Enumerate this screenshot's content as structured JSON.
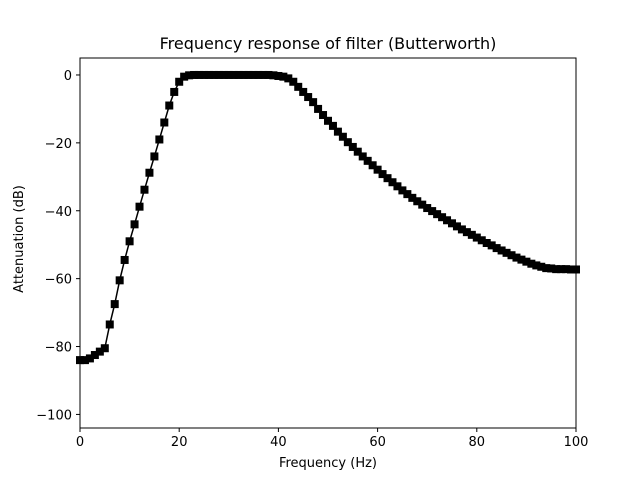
{
  "chart_data": {
    "type": "line",
    "title": "Frequency response of filter (Butterworth)",
    "xlabel": "Frequency (Hz)",
    "ylabel": "Attenuation (dB)",
    "xlim": [
      0,
      100
    ],
    "ylim": [
      -104,
      5
    ],
    "xticks": [
      0,
      20,
      40,
      60,
      80,
      100
    ],
    "yticks": [
      0,
      -20,
      -40,
      -60,
      -80,
      -100
    ],
    "xtick_labels": [
      "0",
      "20",
      "40",
      "60",
      "80",
      "100"
    ],
    "ytick_labels": [
      "0",
      "−20",
      "−40",
      "−60",
      "−80",
      "−100"
    ],
    "grid": false,
    "marker": "square",
    "series_color": "#000000",
    "x": [
      0,
      1,
      2,
      3,
      4,
      5,
      6,
      7,
      8,
      9,
      10,
      11,
      12,
      13,
      14,
      15,
      16,
      17,
      18,
      19,
      20,
      21,
      22,
      23,
      24,
      25,
      26,
      27,
      28,
      29,
      30,
      31,
      32,
      33,
      34,
      35,
      36,
      37,
      38,
      39,
      40,
      41,
      42,
      43,
      44,
      45,
      46,
      47,
      48,
      49,
      50,
      51,
      52,
      53,
      54,
      55,
      56,
      57,
      58,
      59,
      60,
      61,
      62,
      63,
      64,
      65,
      66,
      67,
      68,
      69,
      70,
      71,
      72,
      73,
      74,
      75,
      76,
      77,
      78,
      79,
      80,
      81,
      82,
      83,
      84,
      85,
      86,
      87,
      88,
      89,
      90,
      91,
      92,
      93,
      94,
      95,
      96,
      97,
      98,
      99,
      100
    ],
    "y": [
      -84,
      -84,
      -83.5,
      -82.5,
      -81.5,
      -80.5,
      -73.5,
      -67.5,
      -60.5,
      -54.5,
      -49,
      -44,
      -38.8,
      -33.8,
      -28.8,
      -24,
      -19,
      -14,
      -9,
      -5,
      -2,
      -0.5,
      -0.1,
      0,
      0,
      0,
      0,
      0,
      0,
      0,
      0,
      0,
      0,
      0,
      0,
      0,
      0,
      0,
      0,
      -0.1,
      -0.3,
      -0.5,
      -1,
      -2,
      -3.5,
      -5,
      -6.5,
      -8,
      -10,
      -11.8,
      -13.5,
      -15,
      -16.7,
      -18.2,
      -19.8,
      -21.2,
      -22.6,
      -24,
      -25.3,
      -26.6,
      -27.9,
      -29.2,
      -30.4,
      -31.6,
      -32.8,
      -34,
      -35.1,
      -36.2,
      -37.2,
      -38.2,
      -39.2,
      -40.1,
      -41,
      -41.9,
      -42.8,
      -43.7,
      -44.6,
      -45.5,
      -46.3,
      -47.1,
      -47.9,
      -48.7,
      -49.5,
      -50.2,
      -51,
      -51.7,
      -52.4,
      -53.1,
      -53.8,
      -54.4,
      -55,
      -55.6,
      -56.1,
      -56.5,
      -56.9,
      -57,
      -57.2,
      -57.2,
      -57.2,
      -57.3,
      -57.3
    ]
  }
}
